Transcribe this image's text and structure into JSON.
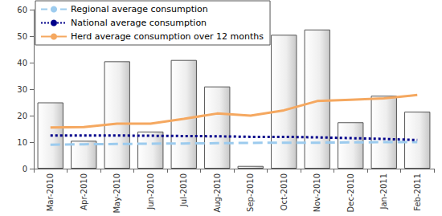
{
  "chart_data": {
    "type": "bar",
    "categories": [
      "Mar-2010",
      "Apr-2010",
      "May-2010",
      "Jun-2010",
      "Jul-2010",
      "Aug-2010",
      "Sep-2010",
      "Oct-2010",
      "Nov-2010",
      "Dec-2010",
      "Jan-2011",
      "Feb-2011"
    ],
    "series": [
      {
        "type": "bar",
        "color": "#c8c8c8",
        "values": [
          25,
          10.5,
          40.5,
          14,
          41,
          31,
          1,
          50.5,
          52.5,
          17.5,
          27.5,
          21.5
        ]
      },
      {
        "name": "Regional average consumption",
        "type": "line",
        "color": "#9ccbee",
        "line_style": "dashed",
        "values": [
          9,
          9.2,
          9.3,
          9.4,
          9.5,
          9.6,
          9.7,
          9.8,
          9.8,
          9.9,
          10,
          10
        ]
      },
      {
        "name": "National average consumption",
        "type": "line",
        "color": "#00008b",
        "line_style": "dotted",
        "values": [
          12.5,
          12.5,
          12.5,
          12.4,
          12.3,
          12.2,
          12,
          12,
          11.8,
          11.5,
          11.2,
          10.8
        ]
      },
      {
        "name": "Herd average consumption over 12 months",
        "type": "line",
        "color": "#f5a860",
        "line_style": "solid",
        "values": [
          15.5,
          15.7,
          17,
          17,
          18.8,
          20.8,
          20,
          22,
          25.5,
          26,
          26.5,
          27.8
        ]
      }
    ],
    "ylim": [
      0,
      60
    ],
    "yticks": [
      0,
      10,
      20,
      30,
      40,
      50,
      60
    ],
    "grid": false,
    "legend": "upper left"
  }
}
